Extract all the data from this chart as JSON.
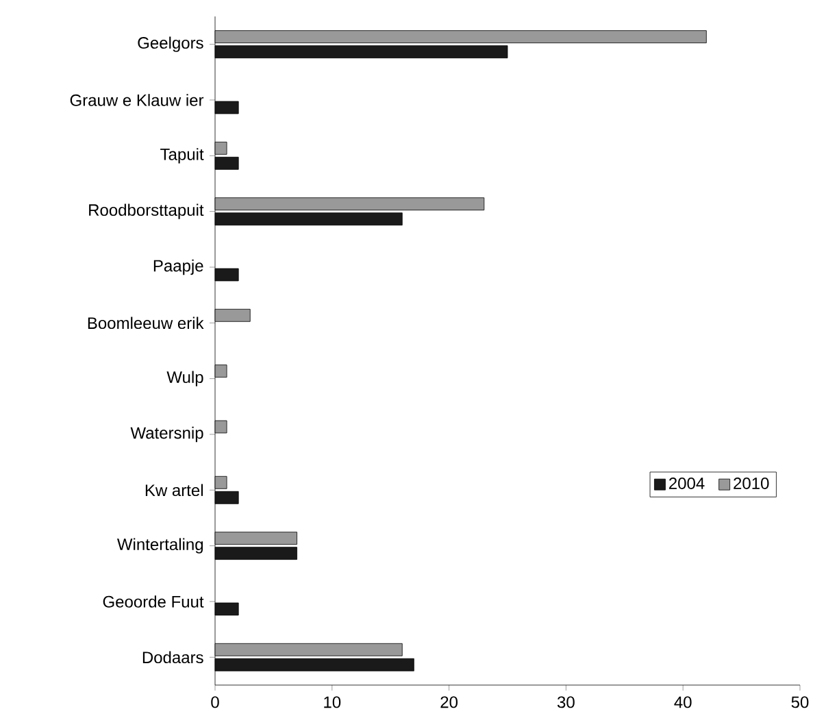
{
  "chart_data": {
    "type": "bar",
    "orientation": "horizontal",
    "categories": [
      "Geelgors",
      "Grauw e Klauw ier",
      "Tapuit",
      "Roodborsttapuit",
      "Paapje",
      "Boomleeuw erik",
      "Wulp",
      "Watersnip",
      "Kw artel",
      "Wintertaling",
      "Geoorde Fuut",
      "Dodaars"
    ],
    "series": [
      {
        "name": "2004",
        "color": "#1a1a1a",
        "values": [
          25,
          2,
          2,
          16,
          2,
          null,
          null,
          null,
          2,
          7,
          2,
          17
        ]
      },
      {
        "name": "2010",
        "color": "#999999",
        "values": [
          42,
          null,
          1,
          23,
          null,
          3,
          1,
          1,
          1,
          7,
          null,
          16
        ]
      }
    ],
    "xlim": [
      0,
      50
    ],
    "xticks": [
      0,
      10,
      20,
      30,
      40,
      50
    ],
    "legend": "right",
    "grid": false
  }
}
